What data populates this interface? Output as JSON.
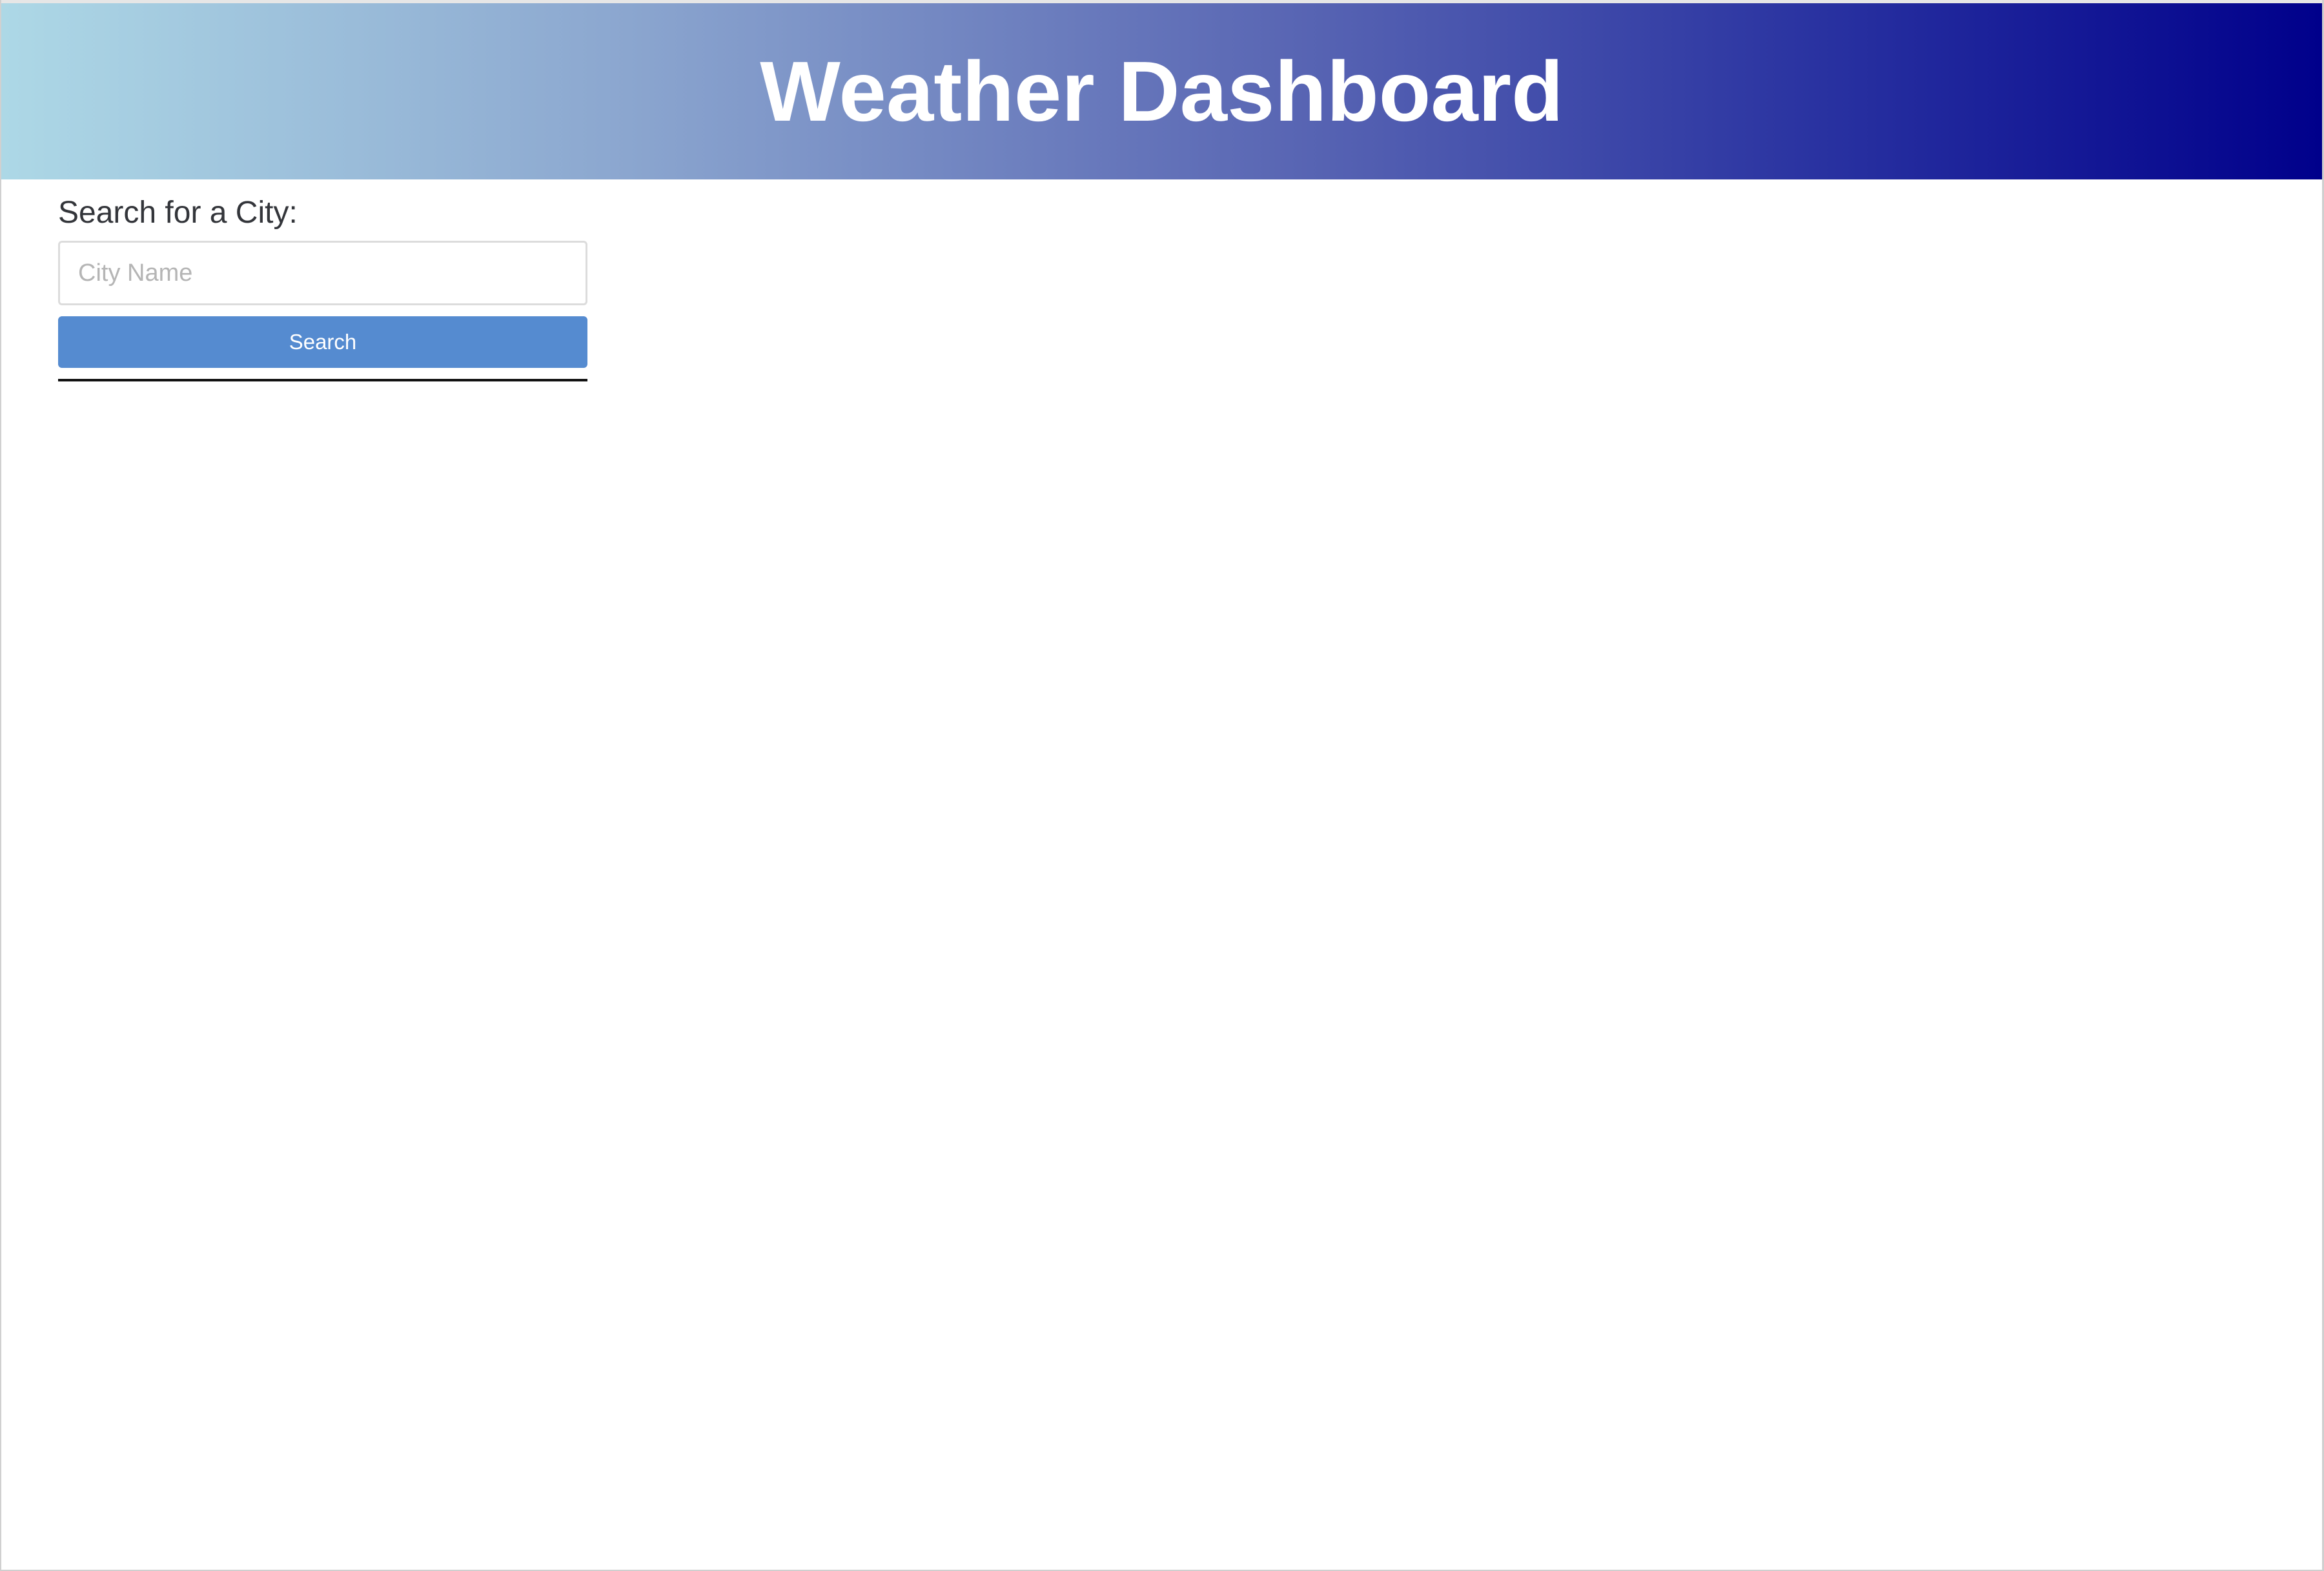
{
  "header": {
    "title": "Weather Dashboard"
  },
  "search": {
    "label": "Search for a City:",
    "placeholder": "City Name",
    "value": "",
    "button_label": "Search"
  },
  "colors": {
    "header_gradient_start": "#add8e6",
    "header_gradient_end": "#00008b",
    "button": "#558bd0",
    "header_text": "#ffffff"
  }
}
